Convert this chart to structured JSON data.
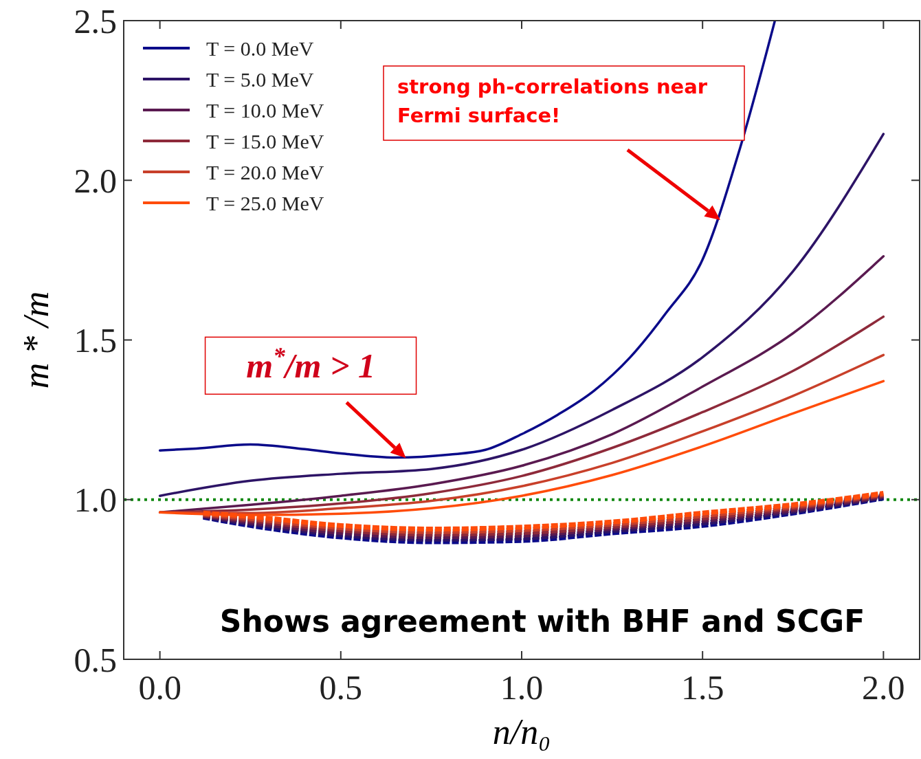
{
  "chart_data": {
    "type": "line",
    "xlabel": "n/n₀",
    "ylabel": "m * /m",
    "x": [
      0,
      0.25,
      0.5,
      0.75,
      1.0,
      1.25,
      1.5,
      1.75,
      2.0
    ],
    "xlim": [
      -0.1,
      2.1
    ],
    "ylim": [
      0.5,
      2.5
    ],
    "xticks": [
      {
        "value": 0,
        "label": "0.0"
      },
      0.5,
      {
        "value": 1,
        "label": "1.0"
      },
      1.5,
      {
        "value": 2,
        "label": "2.0"
      }
    ],
    "yticks": [
      0.5,
      {
        "value": 1,
        "label": "1.0"
      },
      1.5,
      {
        "value": 2,
        "label": "2.0"
      },
      2.5
    ],
    "grid": false,
    "legend": "top left",
    "marker": "none",
    "series": [
      {
        "name": "T = 0.0 MeV",
        "color": "#0b0b8a",
        "line_style": "solid",
        "x": [
          0,
          0.1,
          0.25,
          0.4,
          0.5,
          0.65,
          0.8,
          0.9,
          1.0,
          1.1,
          1.2,
          1.3,
          1.4,
          1.5,
          1.6,
          1.7
        ],
        "values": [
          1.154,
          1.16,
          1.173,
          1.158,
          1.145,
          1.132,
          1.141,
          1.156,
          1.205,
          1.266,
          1.341,
          1.446,
          1.586,
          1.752,
          2.087,
          2.5
        ]
      },
      {
        "name": "T = 5.0 MeV",
        "color": "#2d1466",
        "line_style": "solid",
        "values": [
          1.012,
          1.059,
          1.081,
          1.096,
          1.156,
          1.281,
          1.446,
          1.715,
          2.145
        ]
      },
      {
        "name": "T = 10.0 MeV",
        "color": "#5a1a50",
        "line_style": "solid",
        "values": [
          0.96,
          0.984,
          1.012,
          1.048,
          1.106,
          1.205,
          1.354,
          1.521,
          1.762
        ]
      },
      {
        "name": "T = 15.0 MeV",
        "color": "#8e2a3a",
        "line_style": "solid",
        "values": [
          0.96,
          0.969,
          0.988,
          1.02,
          1.074,
          1.162,
          1.274,
          1.403,
          1.573
        ]
      },
      {
        "name": "T = 20.0 MeV",
        "color": "#c8402a",
        "line_style": "solid",
        "values": [
          0.96,
          0.958,
          0.973,
          0.996,
          1.042,
          1.115,
          1.214,
          1.325,
          1.453
        ]
      },
      {
        "name": "T = 25.0 MeV",
        "color": "#ff4c0a",
        "line_style": "solid",
        "values": [
          0.96,
          0.952,
          0.956,
          0.973,
          1.012,
          1.077,
          1.167,
          1.27,
          1.371
        ]
      },
      {
        "color": "#0b0b8a",
        "line_style": "dashed",
        "x": [
          0.12,
          0.25,
          0.5,
          0.75,
          1.0,
          1.25,
          1.5,
          1.75,
          2.0
        ],
        "values": [
          0.945,
          0.919,
          0.883,
          0.868,
          0.872,
          0.896,
          0.919,
          0.958,
          1.005
        ]
      },
      {
        "color": "#2d1466",
        "line_style": "dashed",
        "x": [
          0.12,
          0.25,
          0.5,
          0.75,
          1.0,
          1.25,
          1.5,
          1.75,
          2.0
        ],
        "values": [
          0.947,
          0.925,
          0.89,
          0.876,
          0.88,
          0.903,
          0.927,
          0.963,
          1.008
        ]
      },
      {
        "color": "#5a1a50",
        "line_style": "dashed",
        "x": [
          0.12,
          0.25,
          0.5,
          0.75,
          1.0,
          1.25,
          1.5,
          1.75,
          2.0
        ],
        "values": [
          0.95,
          0.93,
          0.897,
          0.884,
          0.889,
          0.91,
          0.935,
          0.968,
          1.011
        ]
      },
      {
        "color": "#8e2a3a",
        "line_style": "dashed",
        "x": [
          0.12,
          0.25,
          0.5,
          0.75,
          1.0,
          1.25,
          1.5,
          1.75,
          2.0
        ],
        "values": [
          0.952,
          0.936,
          0.905,
          0.892,
          0.897,
          0.916,
          0.942,
          0.974,
          1.014
        ]
      },
      {
        "color": "#c8402a",
        "line_style": "dashed",
        "x": [
          0.12,
          0.25,
          0.5,
          0.75,
          1.0,
          1.25,
          1.5,
          1.75,
          2.0
        ],
        "values": [
          0.955,
          0.941,
          0.912,
          0.9,
          0.906,
          0.923,
          0.95,
          0.979,
          1.017
        ]
      },
      {
        "color": "#ff4c0a",
        "line_style": "dashed",
        "x": [
          0.12,
          0.25,
          0.5,
          0.75,
          1.0,
          1.25,
          1.5,
          1.75,
          2.0
        ],
        "values": [
          0.958,
          0.947,
          0.919,
          0.908,
          0.914,
          0.93,
          0.958,
          0.984,
          1.02
        ]
      }
    ],
    "ref_lines": [
      {
        "axis": "y",
        "value": 1.0,
        "color": "#118811",
        "line_style": "dotted"
      }
    ],
    "annotations": [
      "strong ph-correlations near Fermi surface!",
      {
        "text": "m$^{*}$/m > 1",
        "x": 0.68,
        "y": 1.13
      },
      "Shows agreement with BHF and SCGF"
    ]
  }
}
